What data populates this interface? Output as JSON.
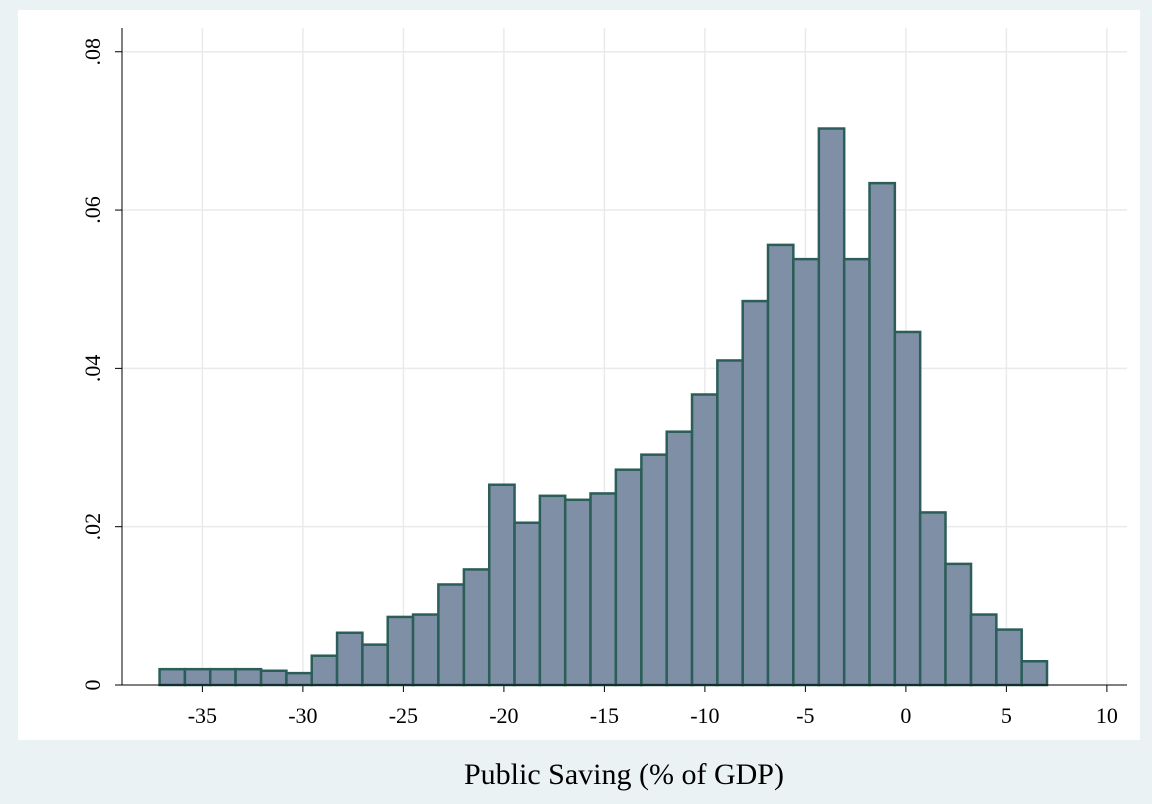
{
  "chart_data": {
    "type": "histogram",
    "xlabel": "Public Saving (% of GDP)",
    "bins": [
      -37.13,
      -35.87,
      -34.61,
      -33.35,
      -32.08,
      -30.82,
      -29.56,
      -28.3,
      -27.04,
      -25.78,
      -24.52,
      -23.26,
      -21.99,
      -20.73,
      -19.47,
      -18.21,
      -16.95,
      -15.69,
      -14.43,
      -13.16,
      -11.9,
      -10.64,
      -9.38,
      -8.12,
      -6.86,
      -5.6,
      -4.33,
      -3.07,
      -1.81,
      -0.55,
      0.71,
      1.97,
      3.24,
      4.5,
      5.76,
      7.02
    ],
    "values": [
      0.002,
      0.002,
      0.002,
      0.002,
      0.0018,
      0.0015,
      0.0037,
      0.0066,
      0.0051,
      0.0086,
      0.0089,
      0.0127,
      0.0146,
      0.0253,
      0.0205,
      0.0239,
      0.0234,
      0.0242,
      0.0272,
      0.0291,
      0.032,
      0.0367,
      0.041,
      0.0485,
      0.0556,
      0.0538,
      0.0703,
      0.0538,
      0.0634,
      0.0446,
      0.0218,
      0.0153,
      0.0089,
      0.007,
      0.003
    ],
    "color": "#7f8fa6",
    "edgecolor": "#2b5e58",
    "xlim": [
      -39,
      11
    ],
    "xticks": [
      -35,
      -30,
      -25,
      -20,
      -15,
      -10,
      -5,
      0,
      5,
      10
    ],
    "ylim": [
      0,
      0.083
    ],
    "yticks": [
      0,
      {
        "value": 0.02,
        "label": ".02"
      },
      {
        "value": 0.04,
        "label": ".04"
      },
      {
        "value": 0.06,
        "label": ".06"
      },
      {
        "value": 0.08,
        "label": ".08"
      }
    ],
    "grid": true
  }
}
